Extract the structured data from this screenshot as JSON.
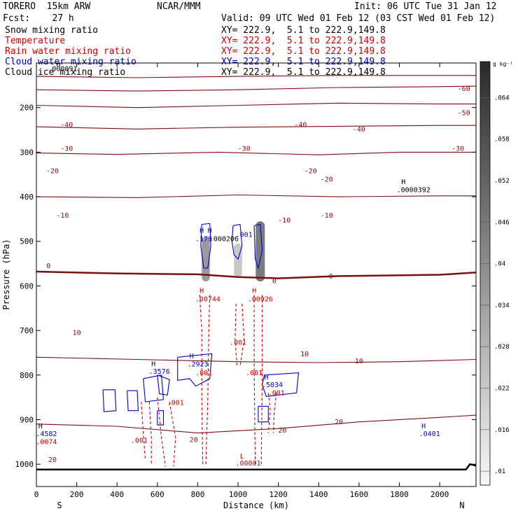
{
  "header": {
    "model": "TORERO  15km ARW",
    "org": "NCAR/MMM",
    "init": "Init: 06 UTC Tue 31 Jan 12",
    "fcst": "Fcst:    27 h",
    "valid": "Valid: 09 UTC Wed 01 Feb 12 (03 CST Wed 01 Feb 12)"
  },
  "legend": [
    {
      "label": "Snow mixing ratio",
      "xy": "XY= 222.9,  5.1 to 222.9,149.8",
      "color": "#000000"
    },
    {
      "label": "Temperature",
      "xy": "XY= 222.9,  5.1 to 222.9,149.8",
      "color": "#cc0000"
    },
    {
      "label": "Rain water mixing ratio",
      "xy": "XY= 222.9,  5.1 to 222.9,149.8",
      "color": "#cc0000"
    },
    {
      "label": "Cloud water mixing ratio",
      "xy": "XY= 222.9,  5.1 to 222.9,149.8",
      "color": "#0000cc"
    },
    {
      "label": "Cloud ice mixing ratio",
      "xy": "XY= 222.9,  5.1 to 222.9,149.8",
      "color": "#000000"
    }
  ],
  "chart_data": {
    "type": "cross-section",
    "xlabel": "Distance (km)",
    "ylabel": "Pressure (hPa)",
    "xlim": [
      0,
      2180
    ],
    "ylim": [
      1050,
      100
    ],
    "x_ticks": [
      0,
      200,
      400,
      600,
      800,
      1000,
      1200,
      1400,
      1600,
      1800,
      2000
    ],
    "y_ticks": [
      200,
      300,
      400,
      500,
      600,
      700,
      800,
      900,
      1000
    ],
    "x_end_labels": [
      "S",
      "N"
    ],
    "temperature_contours": [
      {
        "label": "-60",
        "points": [
          [
            0,
            130
          ],
          [
            500,
            133
          ],
          [
            1000,
            130
          ],
          [
            1500,
            128
          ],
          [
            2000,
            128
          ],
          [
            2180,
            128
          ]
        ]
      },
      {
        "label": "-50",
        "points": [
          [
            0,
            160
          ],
          [
            500,
            163
          ],
          [
            1000,
            160
          ],
          [
            1500,
            155
          ],
          [
            2000,
            153
          ],
          [
            2180,
            152
          ]
        ]
      },
      {
        "label": "-40",
        "points": [
          [
            0,
            195
          ],
          [
            500,
            200
          ],
          [
            1000,
            195
          ],
          [
            1500,
            190
          ],
          [
            2000,
            192
          ],
          [
            2180,
            192
          ]
        ]
      },
      {
        "label": "-30",
        "points": [
          [
            0,
            243
          ],
          [
            500,
            248
          ],
          [
            1000,
            244
          ],
          [
            1500,
            242
          ],
          [
            2000,
            240
          ],
          [
            2180,
            240
          ]
        ]
      },
      {
        "label": "-20",
        "points": [
          [
            0,
            302
          ],
          [
            400,
            305
          ],
          [
            900,
            300
          ],
          [
            1400,
            306
          ],
          [
            1800,
            300
          ],
          [
            2180,
            300
          ]
        ]
      },
      {
        "label": "-10",
        "points": [
          [
            0,
            400
          ],
          [
            500,
            402
          ],
          [
            1000,
            396
          ],
          [
            1500,
            400
          ],
          [
            2000,
            398
          ],
          [
            2180,
            398
          ]
        ]
      },
      {
        "label": "0",
        "points": [
          [
            0,
            568
          ],
          [
            400,
            572
          ],
          [
            800,
            574
          ],
          [
            1000,
            580
          ],
          [
            1200,
            583
          ],
          [
            1500,
            578
          ],
          [
            2000,
            575
          ],
          [
            2180,
            570
          ]
        ]
      },
      {
        "label": "10",
        "points": [
          [
            0,
            760
          ],
          [
            500,
            765
          ],
          [
            1000,
            770
          ],
          [
            1400,
            772
          ],
          [
            1800,
            770
          ],
          [
            2180,
            765
          ]
        ]
      },
      {
        "label": "20",
        "points": [
          [
            0,
            910
          ],
          [
            400,
            915
          ],
          [
            800,
            930
          ],
          [
            1200,
            920
          ],
          [
            1600,
            905
          ],
          [
            2000,
            895
          ],
          [
            2180,
            890
          ]
        ]
      }
    ],
    "temperature_labels": [
      {
        "text": "-60",
        "x": 2120,
        "y": 163
      },
      {
        "text": "-50",
        "x": 2120,
        "y": 217
      },
      {
        "text": "-40",
        "x": 150,
        "y": 244
      },
      {
        "text": "-40",
        "x": 1310,
        "y": 244
      },
      {
        "text": "-40",
        "x": 1600,
        "y": 254
      },
      {
        "text": "-30",
        "x": 150,
        "y": 297
      },
      {
        "text": "-30",
        "x": 1030,
        "y": 297
      },
      {
        "text": "-30",
        "x": 2090,
        "y": 297
      },
      {
        "text": "-20",
        "x": 80,
        "y": 347
      },
      {
        "text": "-20",
        "x": 1360,
        "y": 347
      },
      {
        "text": "-20",
        "x": 1440,
        "y": 366
      },
      {
        "text": "-10",
        "x": 130,
        "y": 447
      },
      {
        "text": "-10",
        "x": 1230,
        "y": 458
      },
      {
        "text": "-10",
        "x": 1440,
        "y": 447
      },
      {
        "text": "0",
        "x": 60,
        "y": 560
      },
      {
        "text": "0",
        "x": 1180,
        "y": 594
      },
      {
        "text": "0",
        "x": 1460,
        "y": 584
      },
      {
        "text": "10",
        "x": 200,
        "y": 710
      },
      {
        "text": "10",
        "x": 1330,
        "y": 758
      },
      {
        "text": "10",
        "x": 1600,
        "y": 774
      },
      {
        "text": "20",
        "x": 1500,
        "y": 910
      },
      {
        "text": "20",
        "x": 1220,
        "y": 929
      },
      {
        "text": "20",
        "x": 780,
        "y": 950
      },
      {
        "text": "20",
        "x": 80,
        "y": 995
      }
    ],
    "value_labels": [
      {
        "text": "H",
        "x": 110,
        "y": 108,
        "color": "#000000"
      },
      {
        "text": ".000091",
        "x": 130,
        "y": 118,
        "color": "#000000"
      },
      {
        "text": "H",
        "x": 1820,
        "y": 372,
        "color": "#000000"
      },
      {
        "text": ".0000392",
        "x": 1870,
        "y": 390,
        "color": "#000000"
      },
      {
        "text": "H",
        "x": 820,
        "y": 481,
        "color": "#0000cc"
      },
      {
        "text": "H",
        "x": 860,
        "y": 481,
        "color": "#0000cc"
      },
      {
        "text": ".179",
        "x": 830,
        "y": 500,
        "color": "#0000cc"
      },
      {
        "text": ".000206",
        "x": 930,
        "y": 500,
        "color": "#000000"
      },
      {
        "text": ".001",
        "x": 1030,
        "y": 490,
        "color": "#0000cc"
      },
      {
        "text": "H",
        "x": 820,
        "y": 616,
        "color": "#cc0000"
      },
      {
        "text": ".00744",
        "x": 850,
        "y": 635,
        "color": "#cc0000"
      },
      {
        "text": "H",
        "x": 1080,
        "y": 616,
        "color": "#cc0000"
      },
      {
        "text": ".00926",
        "x": 1110,
        "y": 635,
        "color": "#cc0000"
      },
      {
        "text": ".001",
        "x": 1000,
        "y": 732,
        "color": "#cc0000"
      },
      {
        "text": "H",
        "x": 770,
        "y": 763,
        "color": "#0000cc"
      },
      {
        "text": ".2923",
        "x": 800,
        "y": 781,
        "color": "#0000cc"
      },
      {
        "text": ".001",
        "x": 830,
        "y": 800,
        "color": "#cc0000"
      },
      {
        "text": "H",
        "x": 580,
        "y": 780,
        "color": "#0000cc"
      },
      {
        "text": ".3576",
        "x": 610,
        "y": 797,
        "color": "#0000cc"
      },
      {
        "text": ".001",
        "x": 1080,
        "y": 800,
        "color": "#cc0000"
      },
      {
        "text": "H",
        "x": 1140,
        "y": 810,
        "color": "#0000cc"
      },
      {
        "text": ".5034",
        "x": 1170,
        "y": 827,
        "color": "#0000cc"
      },
      {
        "text": ".001",
        "x": 1190,
        "y": 845,
        "color": "#cc0000"
      },
      {
        "text": ".001",
        "x": 690,
        "y": 867,
        "color": "#cc0000"
      },
      {
        "text": "H",
        "x": 20,
        "y": 920,
        "color": "#0000cc"
      },
      {
        "text": ".4582",
        "x": 50,
        "y": 937,
        "color": "#0000cc"
      },
      {
        "text": ".0074",
        "x": 50,
        "y": 955,
        "color": "#cc0000"
      },
      {
        "text": "H",
        "x": 1920,
        "y": 920,
        "color": "#0000cc"
      },
      {
        "text": ".0401",
        "x": 1950,
        "y": 937,
        "color": "#0000cc"
      },
      {
        "text": ".001",
        "x": 510,
        "y": 952,
        "color": "#cc0000"
      },
      {
        "text": "L",
        "x": 1020,
        "y": 987,
        "color": "#cc0000"
      },
      {
        "text": ".00001",
        "x": 1050,
        "y": 1003,
        "color": "#cc0000"
      }
    ],
    "snow_shading": [
      {
        "x_center": 840,
        "x_width": 40,
        "p_top": 490,
        "p_bottom": 590,
        "intensity": 0.55
      },
      {
        "x_center": 1000,
        "x_width": 40,
        "p_top": 505,
        "p_bottom": 580,
        "intensity": 0.25
      },
      {
        "x_center": 1110,
        "x_width": 45,
        "p_top": 455,
        "p_bottom": 590,
        "intensity": 0.75
      }
    ],
    "cloud_water_contours": [
      {
        "points": [
          [
            820,
            462
          ],
          [
            860,
            460
          ],
          [
            865,
            510
          ],
          [
            850,
            560
          ],
          [
            830,
            560
          ],
          [
            815,
            510
          ],
          [
            820,
            462
          ]
        ]
      },
      {
        "points": [
          [
            975,
            465
          ],
          [
            1010,
            462
          ],
          [
            1020,
            510
          ],
          [
            1000,
            540
          ],
          [
            980,
            530
          ],
          [
            970,
            500
          ],
          [
            975,
            465
          ]
        ]
      },
      {
        "points": [
          [
            1080,
            465
          ],
          [
            1110,
            462
          ],
          [
            1120,
            520
          ],
          [
            1100,
            560
          ],
          [
            1085,
            540
          ],
          [
            1080,
            465
          ]
        ]
      },
      {
        "points": [
          [
            700,
            760
          ],
          [
            870,
            752
          ],
          [
            860,
            808
          ],
          [
            790,
            825
          ],
          [
            760,
            808
          ],
          [
            700,
            812
          ],
          [
            700,
            760
          ]
        ]
      },
      {
        "points": [
          [
            1130,
            800
          ],
          [
            1300,
            795
          ],
          [
            1290,
            840
          ],
          [
            1140,
            848
          ],
          [
            1120,
            822
          ],
          [
            1130,
            800
          ]
        ]
      },
      {
        "points": [
          [
            330,
            833
          ],
          [
            390,
            833
          ],
          [
            395,
            880
          ],
          [
            335,
            882
          ],
          [
            330,
            833
          ]
        ]
      },
      {
        "points": [
          [
            450,
            835
          ],
          [
            500,
            835
          ],
          [
            505,
            880
          ],
          [
            455,
            880
          ],
          [
            450,
            835
          ]
        ]
      },
      {
        "points": [
          [
            530,
            808
          ],
          [
            620,
            800
          ],
          [
            630,
            855
          ],
          [
            540,
            860
          ],
          [
            530,
            808
          ]
        ]
      },
      {
        "points": [
          [
            600,
            800
          ],
          [
            660,
            810
          ],
          [
            650,
            845
          ],
          [
            610,
            842
          ],
          [
            600,
            800
          ]
        ]
      },
      {
        "points": [
          [
            1100,
            870
          ],
          [
            1150,
            870
          ],
          [
            1150,
            905
          ],
          [
            1100,
            905
          ],
          [
            1100,
            870
          ]
        ]
      },
      {
        "points": [
          [
            600,
            880
          ],
          [
            630,
            880
          ],
          [
            630,
            912
          ],
          [
            600,
            912
          ],
          [
            600,
            880
          ]
        ]
      }
    ],
    "rain_contours": [
      {
        "points": [
          [
            810,
            620
          ],
          [
            820,
            700
          ],
          [
            820,
            850
          ],
          [
            825,
            1005
          ]
        ]
      },
      {
        "points": [
          [
            860,
            620
          ],
          [
            855,
            700
          ],
          [
            850,
            850
          ],
          [
            840,
            1005
          ]
        ]
      },
      {
        "points": [
          [
            1080,
            620
          ],
          [
            1080,
            780
          ],
          [
            1085,
            1000
          ]
        ]
      },
      {
        "points": [
          [
            1120,
            620
          ],
          [
            1120,
            800
          ],
          [
            1115,
            1000
          ]
        ]
      },
      {
        "points": [
          [
            990,
            640
          ],
          [
            985,
            720
          ],
          [
            995,
            780
          ]
        ]
      },
      {
        "points": [
          [
            1020,
            640
          ],
          [
            1030,
            720
          ],
          [
            1010,
            780
          ]
        ]
      },
      {
        "points": [
          [
            520,
            860
          ],
          [
            530,
            930
          ],
          [
            540,
            990
          ]
        ]
      },
      {
        "points": [
          [
            560,
            860
          ],
          [
            570,
            940
          ],
          [
            570,
            1000
          ]
        ]
      },
      {
        "points": [
          [
            600,
            850
          ],
          [
            620,
            940
          ],
          [
            640,
            1005
          ]
        ]
      },
      {
        "points": [
          [
            660,
            860
          ],
          [
            690,
            940
          ],
          [
            680,
            1005
          ]
        ]
      },
      {
        "points": [
          [
            1150,
            840
          ],
          [
            1160,
            880
          ],
          [
            1150,
            930
          ]
        ]
      },
      {
        "points": [
          [
            1190,
            840
          ],
          [
            1180,
            880
          ],
          [
            1175,
            930
          ]
        ]
      }
    ],
    "ground": {
      "points": [
        [
          0,
          1012
        ],
        [
          1000,
          1012
        ],
        [
          2130,
          1012
        ],
        [
          2150,
          1000
        ],
        [
          2180,
          1003
        ]
      ]
    },
    "colorbar": {
      "unit": "g kg⁻¹",
      "ticks": [
        ".064",
        ".058",
        ".052",
        ".046",
        ".04",
        ".034",
        ".028",
        ".022",
        ".016",
        ".01"
      ]
    }
  }
}
